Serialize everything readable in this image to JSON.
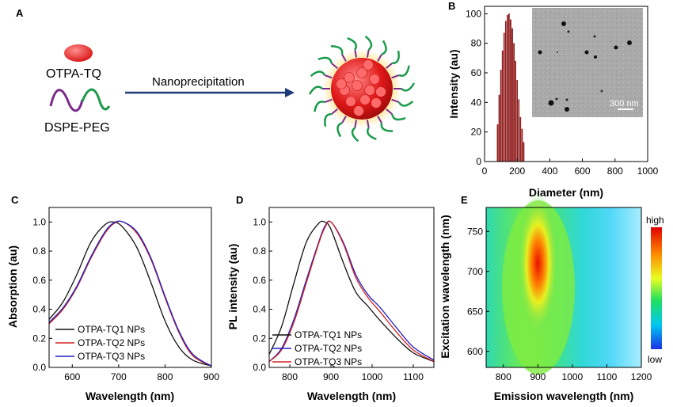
{
  "panel_a": {
    "label": "A",
    "dye_label": "OTPA-TQ",
    "polymer_label": "DSPE-PEG",
    "process_label": "Nanoprecipitation"
  },
  "chart_data": [
    {
      "panel": "B",
      "type": "bar",
      "xlabel": "Diameter (nm)",
      "ylabel": "Intensity (au)",
      "xlim": [
        0,
        1000
      ],
      "ylim": [
        0,
        105
      ],
      "xticks": [
        0,
        200,
        400,
        600,
        800,
        1000
      ],
      "yticks": [
        0,
        20,
        40,
        60,
        80,
        100
      ],
      "x": [
        80,
        90,
        100,
        110,
        120,
        130,
        140,
        150,
        160,
        170,
        180,
        190,
        200,
        210,
        220,
        230,
        240
      ],
      "values": [
        25,
        45,
        62,
        75,
        87,
        95,
        99,
        100,
        96,
        90,
        80,
        68,
        55,
        42,
        30,
        22,
        13
      ],
      "inset_scale_label": "300 nm"
    },
    {
      "panel": "C",
      "type": "line",
      "xlabel": "Wavelength (nm)",
      "ylabel": "Absorption (au)",
      "xlim": [
        550,
        900
      ],
      "ylim": [
        0,
        1.1
      ],
      "xticks": [
        600,
        700,
        800,
        900
      ],
      "yticks": [
        "0.0",
        "0.2",
        "0.4",
        "0.6",
        "0.8",
        "1.0"
      ],
      "series": [
        {
          "name": "OTPA-TQ1 NPs",
          "color": "#111111",
          "x": [
            550,
            580,
            610,
            640,
            670,
            690,
            710,
            740,
            770,
            800,
            830,
            860,
            900
          ],
          "y": [
            0.33,
            0.45,
            0.64,
            0.86,
            0.98,
            1.0,
            0.96,
            0.82,
            0.58,
            0.32,
            0.14,
            0.05,
            0.01
          ]
        },
        {
          "name": "OTPA-TQ2 NPs",
          "color": "#d02020",
          "x": [
            550,
            580,
            610,
            640,
            670,
            690,
            710,
            740,
            770,
            800,
            830,
            860,
            900
          ],
          "y": [
            0.3,
            0.4,
            0.55,
            0.75,
            0.92,
            0.99,
            1.0,
            0.92,
            0.74,
            0.48,
            0.24,
            0.08,
            0.01
          ]
        },
        {
          "name": "OTPA-TQ3 NPs",
          "color": "#2020c0",
          "x": [
            550,
            580,
            610,
            640,
            670,
            690,
            710,
            740,
            770,
            800,
            830,
            860,
            900
          ],
          "y": [
            0.31,
            0.41,
            0.56,
            0.76,
            0.93,
            0.995,
            1.0,
            0.93,
            0.75,
            0.49,
            0.25,
            0.09,
            0.01
          ]
        }
      ]
    },
    {
      "panel": "D",
      "type": "line",
      "xlabel": "Wavelength (nm)",
      "ylabel": "PL intensity (au)",
      "xlim": [
        750,
        1150
      ],
      "ylim": [
        0,
        1.1
      ],
      "xticks": [
        800,
        900,
        1000,
        1100
      ],
      "yticks": [
        "0.0",
        "0.2",
        "0.4",
        "0.6",
        "0.8",
        "1.0"
      ],
      "series": [
        {
          "name": "OTPA-TQ1 NPs",
          "color": "#111111",
          "x": [
            750,
            780,
            810,
            840,
            870,
            885,
            900,
            930,
            960,
            990,
            1020,
            1060,
            1100,
            1150
          ],
          "y": [
            0.09,
            0.28,
            0.58,
            0.86,
            0.99,
            1.0,
            0.95,
            0.72,
            0.52,
            0.42,
            0.32,
            0.2,
            0.1,
            0.04
          ]
        },
        {
          "name": "OTPA-TQ2 NPs",
          "color": "#2020c0",
          "x": [
            750,
            780,
            810,
            840,
            870,
            885,
            900,
            930,
            960,
            990,
            1020,
            1060,
            1100,
            1150
          ],
          "y": [
            0.04,
            0.13,
            0.33,
            0.6,
            0.86,
            0.97,
            1.0,
            0.86,
            0.64,
            0.5,
            0.41,
            0.27,
            0.14,
            0.05
          ]
        },
        {
          "name": "OTPA-TQ3 NPs",
          "color": "#d02020",
          "x": [
            750,
            780,
            810,
            840,
            870,
            885,
            900,
            930,
            960,
            990,
            1020,
            1060,
            1100,
            1150
          ],
          "y": [
            0.04,
            0.12,
            0.31,
            0.58,
            0.85,
            0.96,
            1.0,
            0.85,
            0.62,
            0.48,
            0.38,
            0.24,
            0.12,
            0.04
          ]
        }
      ]
    },
    {
      "panel": "E",
      "type": "heatmap",
      "xlabel": "Emission wavelength (nm)",
      "ylabel": "Excitation wavelength (nm)",
      "xlim": [
        750,
        1200
      ],
      "ylim": [
        580,
        780
      ],
      "xticks": [
        800,
        900,
        1000,
        1100,
        1200
      ],
      "yticks": [
        600,
        650,
        700,
        750
      ],
      "peak_emission": 900,
      "peak_excitation": 710,
      "colorbar_high": "high",
      "colorbar_low": "low"
    }
  ]
}
